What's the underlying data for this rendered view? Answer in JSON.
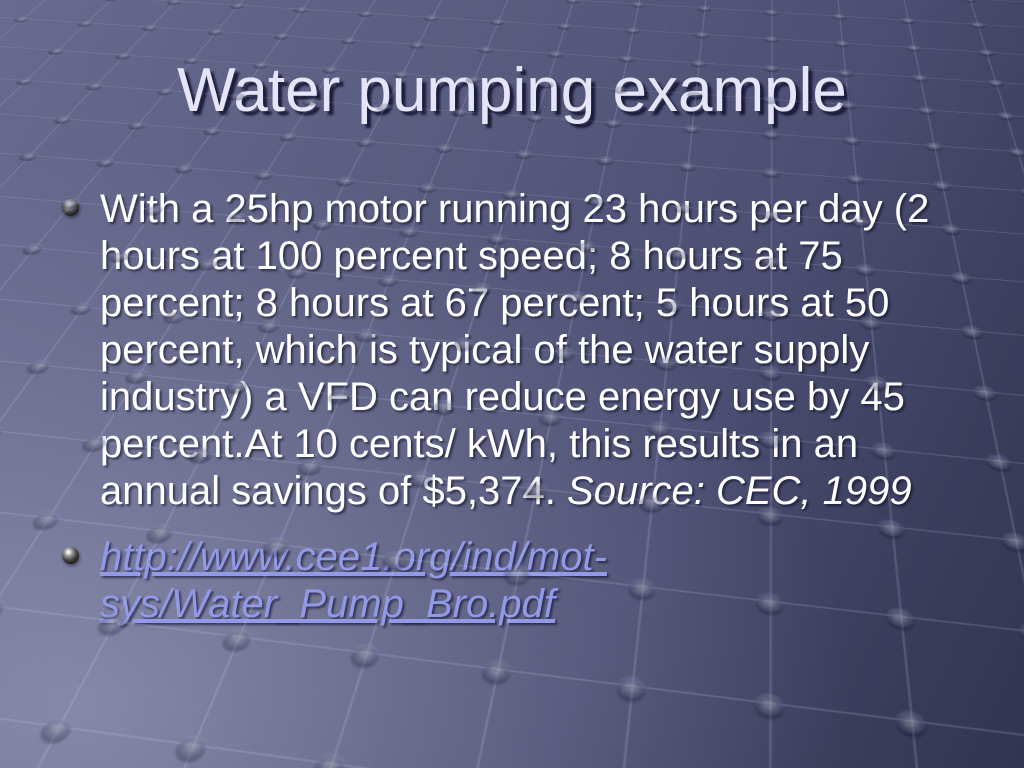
{
  "slide": {
    "title": "Water pumping example",
    "bullet_icon": "sphere-bullet-icon",
    "bullets": [
      {
        "link": false,
        "lines": [
          [
            {
              "t": "With a 25hp motor running 23 hours per day (2"
            }
          ],
          [
            {
              "t": "hours at 100 percent speed; 8 hours at 75"
            }
          ],
          [
            {
              "t": "percent; 8 hours at 67 percent; 5 hours at 50"
            }
          ],
          [
            {
              "t": "percent, which is typical of the water supply"
            }
          ],
          [
            {
              "t": "industry) a VFD can reduce energy use by 45"
            }
          ],
          [
            {
              "t": "percent.At 10 cents/ kWh, this results in an"
            }
          ],
          [
            {
              "t": "annual savings of $5,374. "
            },
            {
              "t": "Source: CEC, 1999",
              "italic": true
            }
          ]
        ]
      },
      {
        "link": true,
        "lines": [
          [
            {
              "t": "http://www.cee1.org/ind/mot-",
              "italic": true,
              "link": true
            }
          ],
          [
            {
              "t": "sys/Water_Pump_Bro.pdf",
              "italic": true,
              "link": true
            }
          ]
        ]
      }
    ],
    "colors": {
      "background_top_left": "#686a8e",
      "background_bottom_left": "#8486a4",
      "background_bottom_right": "#323450",
      "title_text": "#e6e5f7",
      "title_shadow": "#121230",
      "body_text": "#ffffff",
      "link_text": "#929ae8"
    }
  }
}
